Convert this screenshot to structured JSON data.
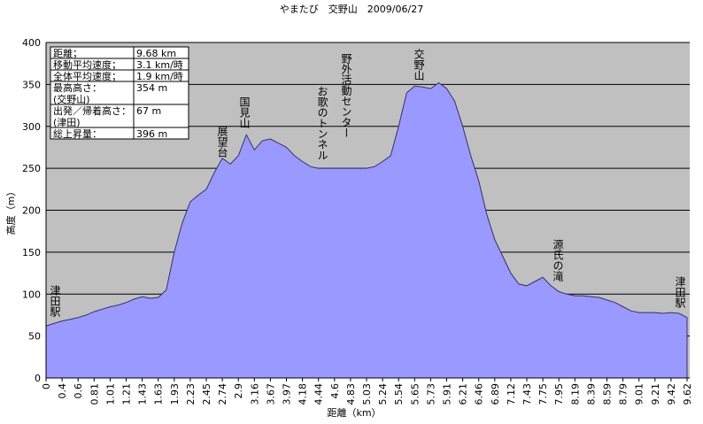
{
  "chart_data": {
    "type": "area",
    "title": "やまたび　交野山　2009/06/27",
    "y_label": "高度（m）",
    "x_label": "距離（km）",
    "categories": [
      "0",
      null,
      "0.4",
      null,
      "0.6",
      null,
      "0.81",
      null,
      "1.01",
      null,
      "1.21",
      null,
      "1.43",
      null,
      "1.63",
      null,
      "1.93",
      null,
      "2.23",
      null,
      "2.45",
      null,
      "2.74",
      null,
      "2.9",
      null,
      "3.16",
      null,
      "3.67",
      null,
      "3.97",
      null,
      "4.18",
      null,
      "4.44",
      null,
      "4.6",
      null,
      "4.83",
      null,
      "5.03",
      null,
      "5.24",
      null,
      "5.54",
      null,
      "5.65",
      null,
      "5.73",
      null,
      "5.91",
      null,
      "6.21",
      null,
      "6.46",
      null,
      "6.89",
      null,
      "7.12",
      null,
      "7.43",
      null,
      "7.75",
      null,
      "7.95",
      null,
      "8.19",
      null,
      "8.39",
      null,
      "8.59",
      null,
      "8.79",
      null,
      "9.01",
      null,
      "9.21",
      null,
      "9.42",
      null,
      "9.62"
    ],
    "values": [
      62,
      65,
      68,
      70,
      72,
      75,
      79,
      82,
      85,
      87,
      90,
      94,
      97,
      95,
      96,
      105,
      150,
      185,
      210,
      218,
      225,
      245,
      262,
      255,
      265,
      290,
      272,
      283,
      285,
      280,
      275,
      265,
      258,
      252,
      250,
      250,
      250,
      250,
      250,
      250,
      250,
      252,
      258,
      265,
      300,
      340,
      348,
      347,
      345,
      352,
      345,
      330,
      300,
      265,
      235,
      195,
      165,
      145,
      125,
      112,
      110,
      115,
      120,
      110,
      103,
      100,
      98,
      98,
      97,
      96,
      93,
      90,
      85,
      80,
      78,
      78,
      78,
      77,
      78,
      77,
      72
    ],
    "color": "#9999ff",
    "ylim": [
      0,
      400
    ],
    "yticks": [
      0,
      50,
      100,
      150,
      200,
      250,
      300,
      350,
      400
    ],
    "grid": true,
    "annotations": [
      "津田駅",
      "展望台",
      "国見山",
      "お歌のトンネル",
      "野外活動センター",
      "交野山",
      "源氏の滝",
      "津田駅"
    ],
    "info_table": [
      [
        "距離；",
        "9.68 km"
      ],
      [
        "移動平均速度；",
        "3.1 km/時"
      ],
      [
        "全体平均速度；",
        "1.9 km/時"
      ],
      [
        [
          "最高高さ：",
          "(交野山)"
        ],
        "354 m"
      ],
      [
        [
          "出発／帰着高さ：",
          "(津田)"
        ],
        "67 m"
      ],
      [
        "総上昇量：",
        "396 m"
      ]
    ]
  }
}
